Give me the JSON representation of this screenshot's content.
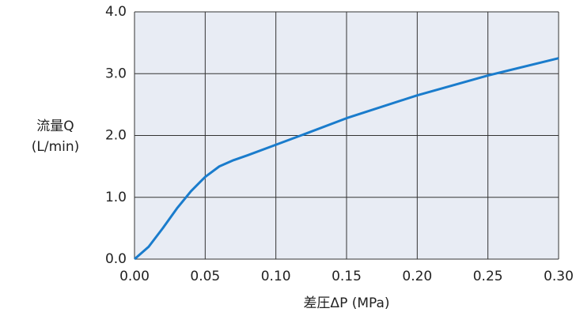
{
  "chart_data": {
    "type": "line",
    "xlabel": "差圧ΔP (MPa)",
    "ylabel": [
      "流量Q",
      "(L/min)"
    ],
    "x": [
      0,
      0.01,
      0.02,
      0.03,
      0.04,
      0.05,
      0.06,
      0.07,
      0.08,
      0.1,
      0.12,
      0.15,
      0.2,
      0.25,
      0.3
    ],
    "series": [
      {
        "color": "#1a7ccc",
        "values": [
          0,
          0.2,
          0.5,
          0.82,
          1.1,
          1.33,
          1.5,
          1.6,
          1.68,
          1.85,
          2.02,
          2.28,
          2.65,
          2.97,
          3.25
        ]
      }
    ],
    "xlim": [
      0,
      0.3
    ],
    "xticks": [
      {
        "value": 0,
        "label": "0.00"
      },
      {
        "value": 0.05,
        "label": "0.05"
      },
      {
        "value": 0.1,
        "label": "0.10"
      },
      {
        "value": 0.15,
        "label": "0.15"
      },
      {
        "value": 0.2,
        "label": "0.20"
      },
      {
        "value": 0.25,
        "label": "0.25"
      },
      {
        "value": 0.3,
        "label": "0.30"
      }
    ],
    "ylim": [
      0,
      4
    ],
    "yticks": [
      {
        "value": 0,
        "label": "0.0"
      },
      {
        "value": 1,
        "label": "1.0"
      },
      {
        "value": 2,
        "label": "2.0"
      },
      {
        "value": 3,
        "label": "3.0"
      },
      {
        "value": 4,
        "label": "4.0"
      }
    ],
    "grid": true
  }
}
